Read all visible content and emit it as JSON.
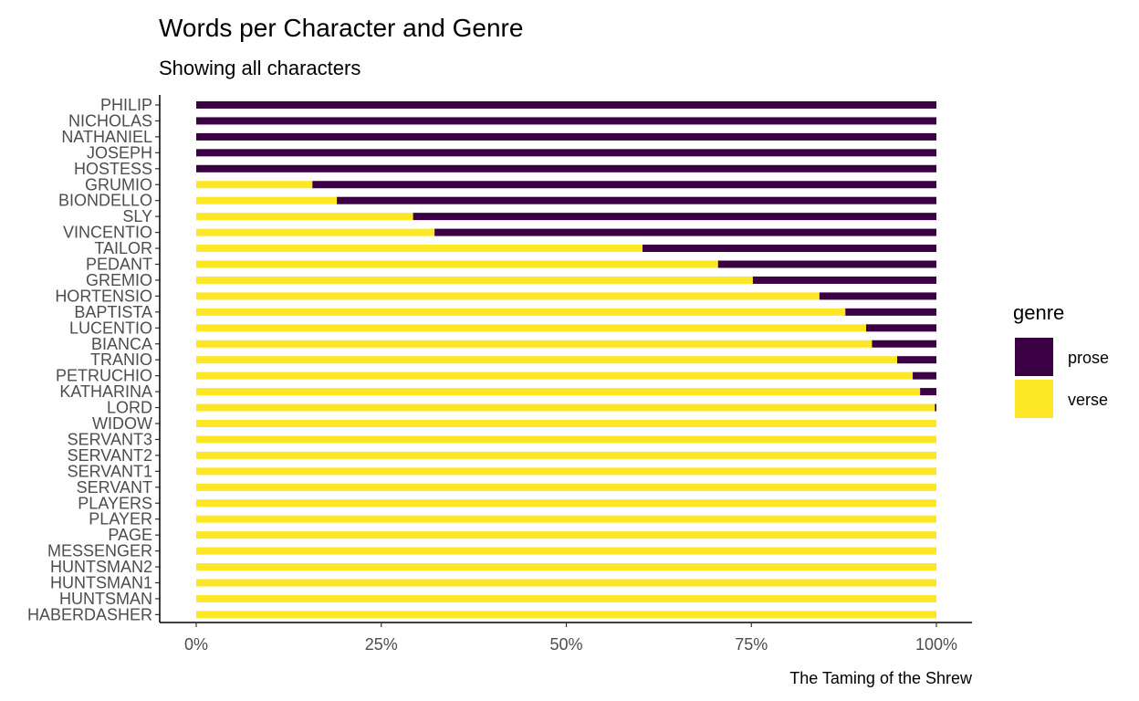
{
  "chart_data": {
    "type": "bar",
    "orientation": "horizontal",
    "stacked": "percent",
    "title": "Words per Character and Genre",
    "subtitle": "Showing all characters",
    "caption": "The Taming of the Shrew",
    "xlabel": "",
    "ylabel": "",
    "xlim": [
      0,
      1
    ],
    "x_ticks": [
      0,
      0.25,
      0.5,
      0.75,
      1
    ],
    "x_tick_labels": [
      "0%",
      "25%",
      "50%",
      "75%",
      "100%"
    ],
    "grid": false,
    "legend": {
      "title": "genre",
      "position": "right",
      "entries": [
        "prose",
        "verse"
      ]
    },
    "colors": {
      "prose": "#3b0043",
      "verse": "#fde725"
    },
    "categories": [
      "PHILIP",
      "NICHOLAS",
      "NATHANIEL",
      "JOSEPH",
      "HOSTESS",
      "GRUMIO",
      "BIONDELLO",
      "SLY",
      "VINCENTIO",
      "TAILOR",
      "PEDANT",
      "GREMIO",
      "HORTENSIO",
      "BAPTISTA",
      "LUCENTIO",
      "BIANCA",
      "TRANIO",
      "PETRUCHIO",
      "KATHARINA",
      "LORD",
      "WIDOW",
      "SERVANT3",
      "SERVANT2",
      "SERVANT1",
      "SERVANT",
      "PLAYERS",
      "PLAYER",
      "PAGE",
      "MESSENGER",
      "HUNTSMAN2",
      "HUNTSMAN1",
      "HUNTSMAN",
      "HABERDASHER"
    ],
    "series": [
      {
        "name": "verse",
        "values": [
          0,
          0,
          0,
          0,
          0,
          0.157,
          0.19,
          0.293,
          0.322,
          0.603,
          0.705,
          0.752,
          0.842,
          0.877,
          0.905,
          0.913,
          0.947,
          0.968,
          0.978,
          0.998,
          1,
          1,
          1,
          1,
          1,
          1,
          1,
          1,
          1,
          1,
          1,
          1,
          1
        ]
      },
      {
        "name": "prose",
        "values": [
          1,
          1,
          1,
          1,
          1,
          0.843,
          0.81,
          0.707,
          0.678,
          0.397,
          0.295,
          0.248,
          0.158,
          0.123,
          0.095,
          0.087,
          0.053,
          0.032,
          0.022,
          0.002,
          0,
          0,
          0,
          0,
          0,
          0,
          0,
          0,
          0,
          0,
          0,
          0,
          0
        ]
      }
    ]
  }
}
